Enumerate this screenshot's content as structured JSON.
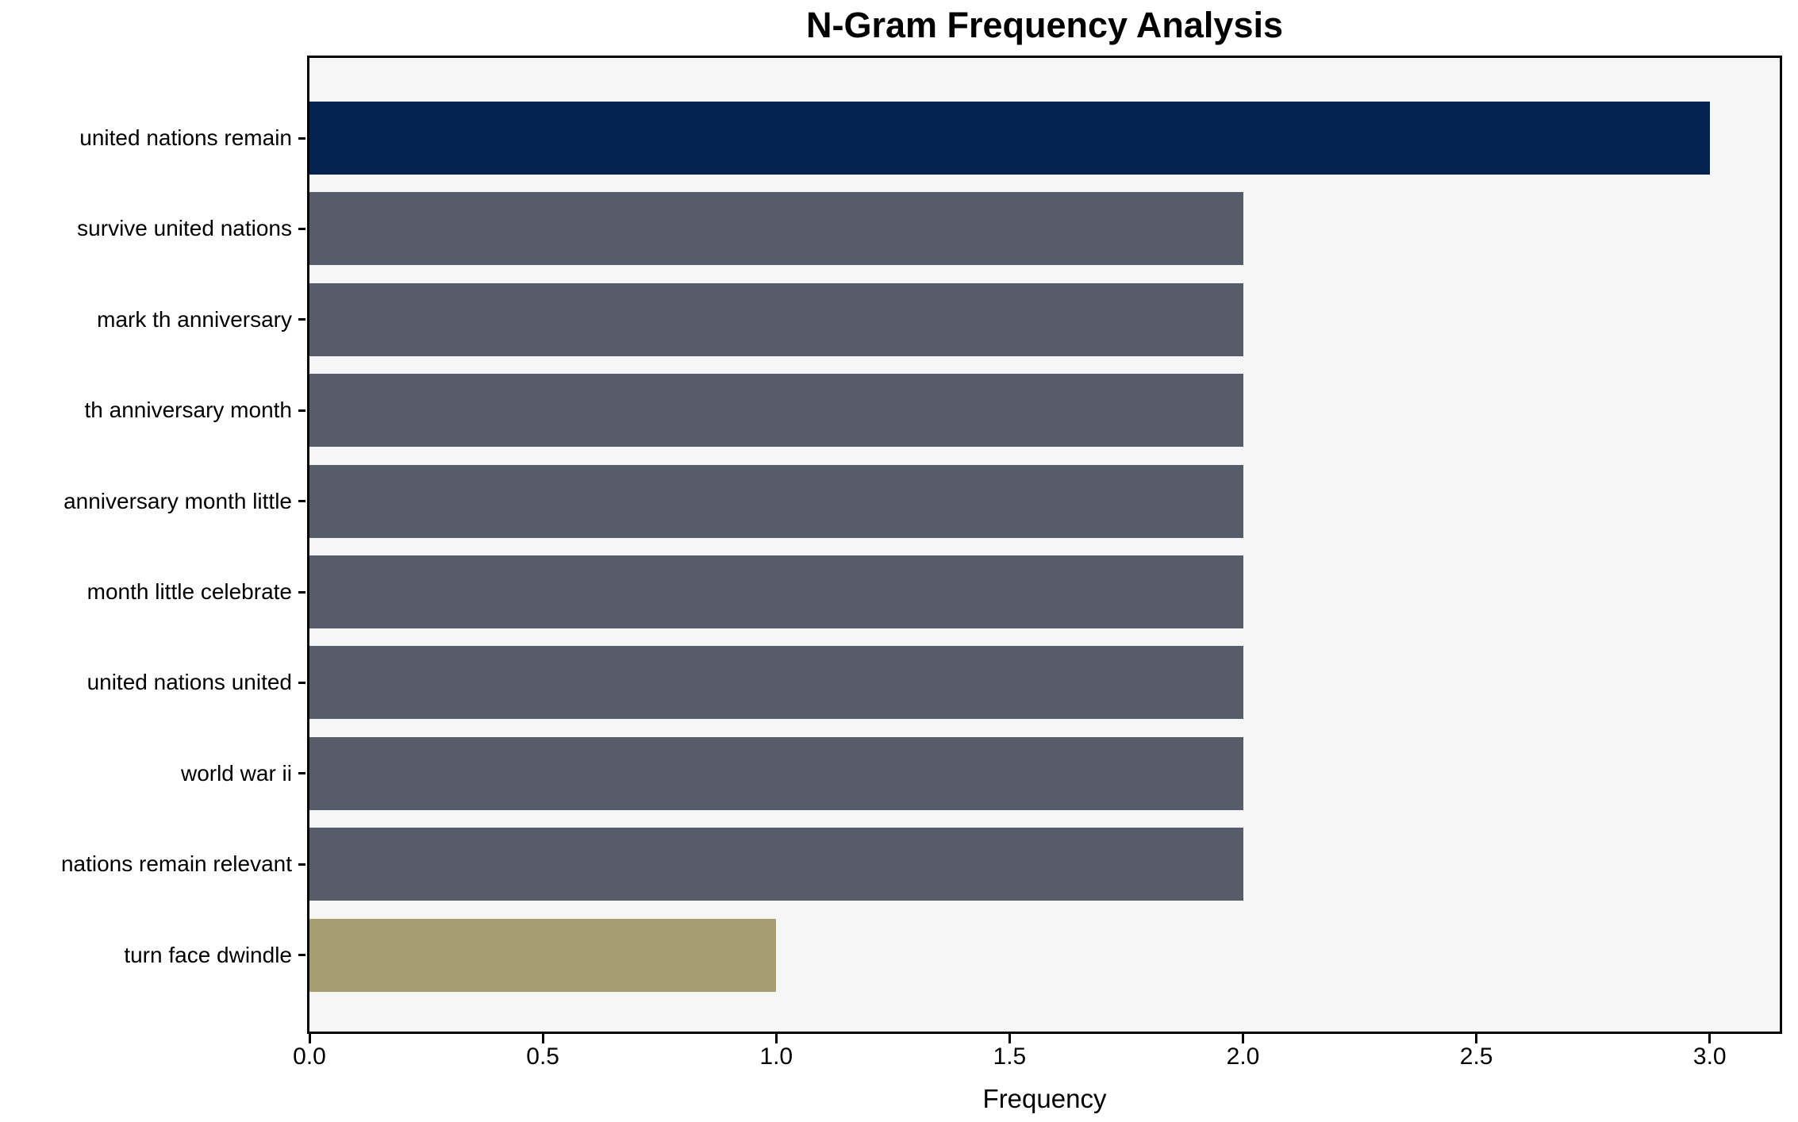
{
  "chart_data": {
    "type": "bar",
    "orientation": "horizontal",
    "title": "N-Gram Frequency Analysis",
    "xlabel": "Frequency",
    "ylabel": "",
    "categories": [
      "united nations remain",
      "survive united nations",
      "mark th anniversary",
      "th anniversary month",
      "anniversary month little",
      "month little celebrate",
      "united nations united",
      "world war ii",
      "nations remain relevant",
      "turn face dwindle"
    ],
    "values": [
      3,
      2,
      2,
      2,
      2,
      2,
      2,
      2,
      2,
      1
    ],
    "bar_colors": [
      "#02234D",
      "#565C69",
      "#565C69",
      "#565C69",
      "#565C69",
      "#565C69",
      "#565C69",
      "#565C69",
      "#565C69",
      "#A79D72"
    ],
    "xlim": [
      0,
      3.15
    ],
    "xticks": [
      0.0,
      0.5,
      1.0,
      1.5,
      2.0,
      2.5,
      3.0
    ],
    "xtick_labels": [
      "0.0",
      "0.5",
      "1.0",
      "1.5",
      "2.0",
      "2.5",
      "3.0"
    ],
    "grid": false,
    "legend_position": "none",
    "plot_bg": "#F6F6F7",
    "frame_color": "#000000"
  }
}
